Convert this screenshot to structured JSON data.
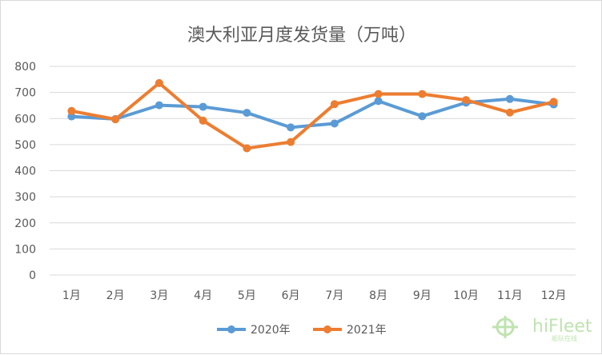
{
  "chart_data": {
    "type": "line",
    "title": "澳大利亚月度发货量（万吨）",
    "categories": [
      "1月",
      "2月",
      "3月",
      "4月",
      "5月",
      "6月",
      "7月",
      "8月",
      "9月",
      "10月",
      "11月",
      "12月"
    ],
    "ylim": [
      0,
      800
    ],
    "yticks": [
      0,
      100,
      200,
      300,
      400,
      500,
      600,
      700,
      800
    ],
    "grid": true,
    "legend_position": "bottom",
    "series": [
      {
        "name": "2020年",
        "color": "#5b9bd5",
        "values": [
          608,
          598,
          651,
          645,
          622,
          566,
          581,
          667,
          609,
          661,
          675,
          654
        ]
      },
      {
        "name": "2021年",
        "color": "#ed7d31",
        "values": [
          629,
          597,
          736,
          592,
          486,
          510,
          655,
          694,
          694,
          671,
          623,
          664
        ]
      }
    ]
  },
  "watermark": {
    "text": "hiFleet",
    "subtext": "船队在线"
  }
}
